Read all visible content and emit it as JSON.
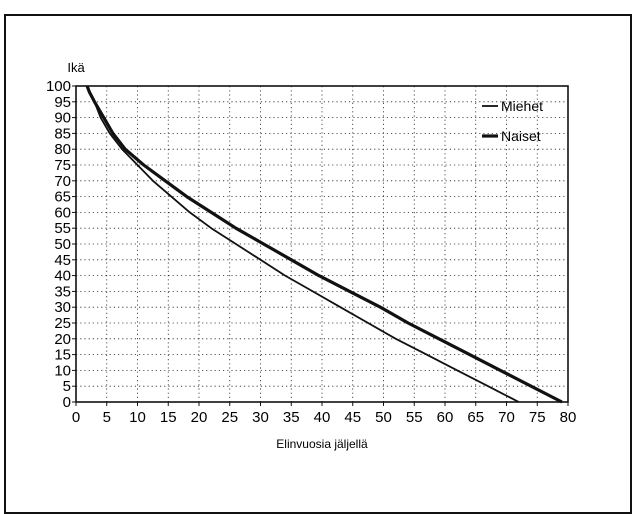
{
  "page": {
    "top_title": ""
  },
  "chart_data": {
    "type": "line",
    "title": "",
    "ylabel": "Ikä",
    "xlabel": "Elinvuosia jäljellä",
    "xlim": [
      0,
      80
    ],
    "ylim": [
      0,
      100
    ],
    "xticks": [
      0,
      5,
      10,
      15,
      20,
      25,
      30,
      35,
      40,
      45,
      50,
      55,
      60,
      65,
      70,
      75,
      80
    ],
    "yticks": [
      0,
      5,
      10,
      15,
      20,
      25,
      30,
      35,
      40,
      45,
      50,
      55,
      60,
      65,
      70,
      75,
      80,
      85,
      90,
      95,
      100
    ],
    "grid": true,
    "legend_position": "top-right",
    "series": [
      {
        "name": "Miehet",
        "style": "solid",
        "color": "#111111",
        "x": [
          72,
          67,
          62,
          57,
          52,
          47.5,
          43,
          38.5,
          34,
          30,
          26,
          22,
          18.5,
          15.5,
          12.5,
          10,
          7.5,
          5.5,
          4,
          3,
          2.2,
          1.8
        ],
        "y": [
          0,
          5,
          10,
          15,
          20,
          25,
          30,
          35,
          40,
          45,
          50,
          55,
          60,
          65,
          70,
          75,
          80,
          85,
          90,
          95,
          98,
          100
        ]
      },
      {
        "name": "Naiset",
        "style": "solid-thick",
        "color": "#111111",
        "x": [
          79,
          74,
          69,
          64,
          59,
          54,
          49.5,
          44.5,
          39.5,
          35,
          30.5,
          26,
          22,
          18,
          14.5,
          11,
          8,
          6,
          4.5,
          3,
          2.2,
          1.8
        ],
        "y": [
          0,
          5,
          10,
          15,
          20,
          25,
          30,
          35,
          40,
          45,
          50,
          55,
          60,
          65,
          70,
          75,
          80,
          85,
          90,
          95,
          98,
          100
        ]
      }
    ]
  }
}
